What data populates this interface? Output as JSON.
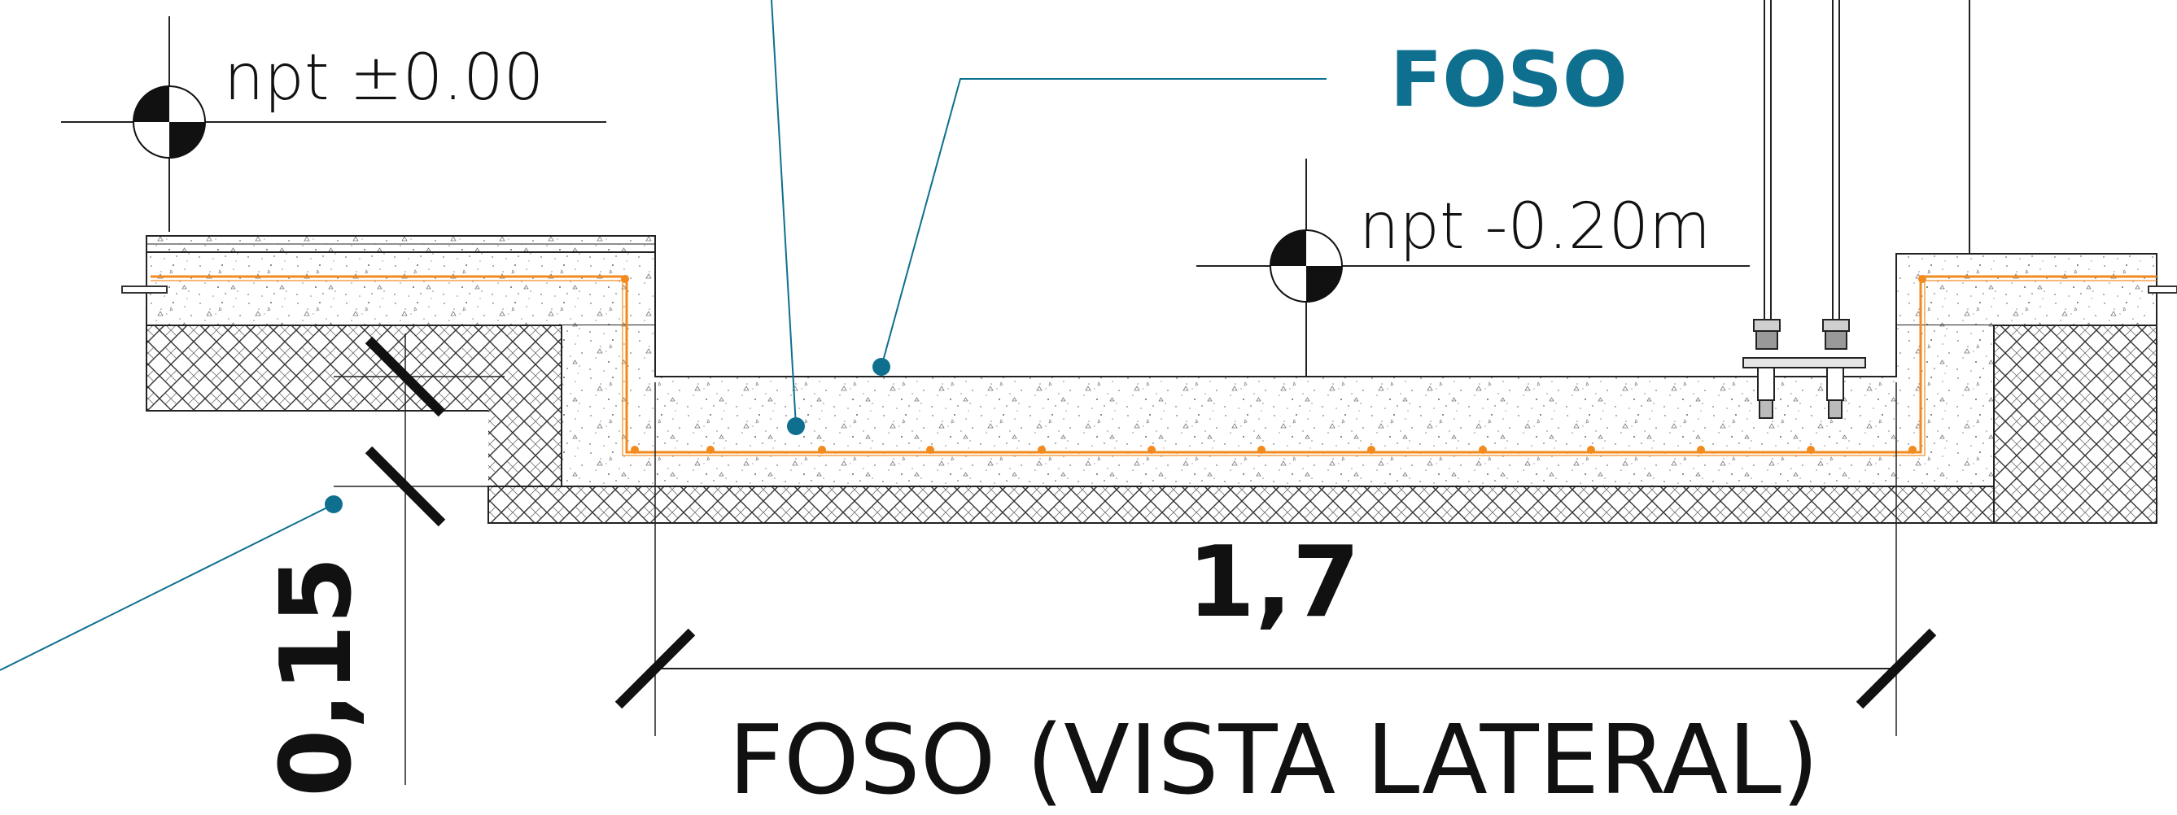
{
  "labels": {
    "level_top": "npt ±0.00",
    "level_bottom": "npt -0.20m",
    "callout": "FOSO",
    "dim_horizontal": "1,7",
    "dim_vertical": "0,15",
    "title": "FOSO (VISTA LATERAL)"
  },
  "colors": {
    "callout": "#0e6f8f",
    "rebar": "#f28a1e",
    "line": "#222222"
  }
}
